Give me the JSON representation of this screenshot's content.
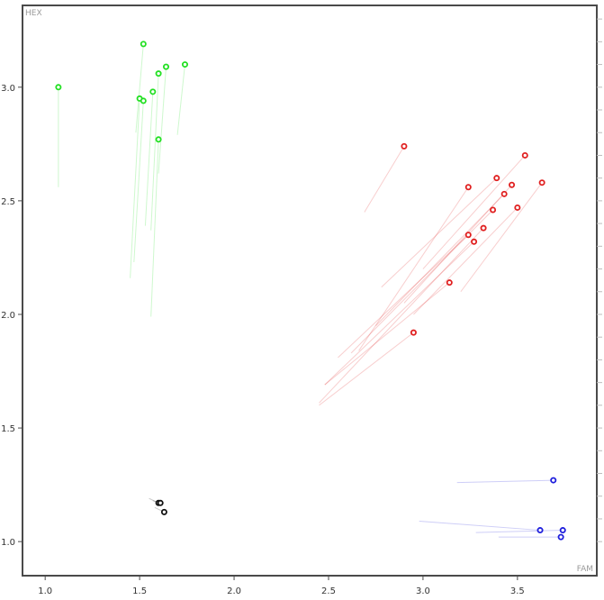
{
  "chart_data": {
    "type": "scatter",
    "xlabel": "FAM",
    "ylabel": "HEX",
    "xlim": [
      0.88,
      3.92
    ],
    "ylim": [
      0.85,
      3.36
    ],
    "xticks": [
      "1.0",
      "1.5",
      "2.0",
      "2.5",
      "3.0",
      "3.5"
    ],
    "xtick_values": [
      1.0,
      1.5,
      2.0,
      2.5,
      3.0,
      3.5
    ],
    "yticks": [
      "1.0",
      "1.5",
      "2.0",
      "2.5",
      "3.0"
    ],
    "ytick_values": [
      1.0,
      1.5,
      2.0,
      2.5,
      3.0
    ],
    "grid": false,
    "background": "#ffffff",
    "series": [
      {
        "color": "#22e022",
        "points": [
          {
            "x": 1.52,
            "y": 3.19,
            "tail": [
              1.48,
              2.8
            ]
          },
          {
            "x": 1.07,
            "y": 3.0,
            "tail": [
              1.07,
              2.56
            ]
          },
          {
            "x": 1.74,
            "y": 3.1,
            "tail": [
              1.7,
              2.79
            ]
          },
          {
            "x": 1.64,
            "y": 3.09,
            "tail": [
              1.6,
              2.62
            ]
          },
          {
            "x": 1.6,
            "y": 3.06,
            "tail": [
              1.56,
              2.37
            ]
          },
          {
            "x": 1.57,
            "y": 2.98,
            "tail": [
              1.53,
              2.39
            ]
          },
          {
            "x": 1.5,
            "y": 2.95,
            "tail": [
              1.45,
              2.16
            ]
          },
          {
            "x": 1.52,
            "y": 2.94,
            "tail": [
              1.47,
              2.23
            ]
          },
          {
            "x": 1.6,
            "y": 2.77,
            "tail": [
              1.56,
              1.99
            ]
          }
        ]
      },
      {
        "color": "#e02020",
        "points": [
          {
            "x": 2.9,
            "y": 2.74,
            "tail": [
              2.69,
              2.45
            ]
          },
          {
            "x": 3.54,
            "y": 2.7,
            "tail": [
              3.0,
              2.2
            ]
          },
          {
            "x": 3.39,
            "y": 2.6,
            "tail": [
              2.78,
              2.12
            ]
          },
          {
            "x": 3.63,
            "y": 2.58,
            "tail": [
              3.2,
              2.1
            ]
          },
          {
            "x": 3.47,
            "y": 2.57,
            "tail": [
              2.9,
              2.05
            ]
          },
          {
            "x": 3.24,
            "y": 2.56,
            "tail": [
              2.66,
              1.84
            ]
          },
          {
            "x": 3.43,
            "y": 2.53,
            "tail": [
              2.75,
              1.95
            ]
          },
          {
            "x": 3.5,
            "y": 2.47,
            "tail": [
              2.95,
              2.0
            ]
          },
          {
            "x": 3.37,
            "y": 2.46,
            "tail": [
              2.62,
              1.83
            ]
          },
          {
            "x": 3.32,
            "y": 2.38,
            "tail": [
              2.45,
              1.61
            ]
          },
          {
            "x": 3.24,
            "y": 2.35,
            "tail": [
              2.55,
              1.81
            ]
          },
          {
            "x": 3.27,
            "y": 2.32,
            "tail": [
              2.48,
              1.69
            ]
          },
          {
            "x": 3.14,
            "y": 2.14,
            "tail": [
              2.48,
              1.69
            ]
          },
          {
            "x": 2.95,
            "y": 1.92,
            "tail": [
              2.45,
              1.6
            ]
          }
        ]
      },
      {
        "color": "#1e1edc",
        "points": [
          {
            "x": 3.69,
            "y": 1.27,
            "tail": [
              3.18,
              1.26
            ]
          },
          {
            "x": 3.62,
            "y": 1.05,
            "tail": [
              2.98,
              1.09
            ]
          },
          {
            "x": 3.74,
            "y": 1.05,
            "tail": [
              3.28,
              1.04
            ]
          },
          {
            "x": 3.73,
            "y": 1.02,
            "tail": [
              3.4,
              1.02
            ]
          }
        ]
      },
      {
        "color": "#111111",
        "points": [
          {
            "x": 1.6,
            "y": 1.17,
            "tail": [
              1.55,
              1.19
            ]
          },
          {
            "x": 1.61,
            "y": 1.17,
            "tail": [
              1.57,
              1.18
            ]
          },
          {
            "x": 1.63,
            "y": 1.13,
            "tail": [
              1.58,
              1.15
            ]
          }
        ]
      }
    ]
  }
}
